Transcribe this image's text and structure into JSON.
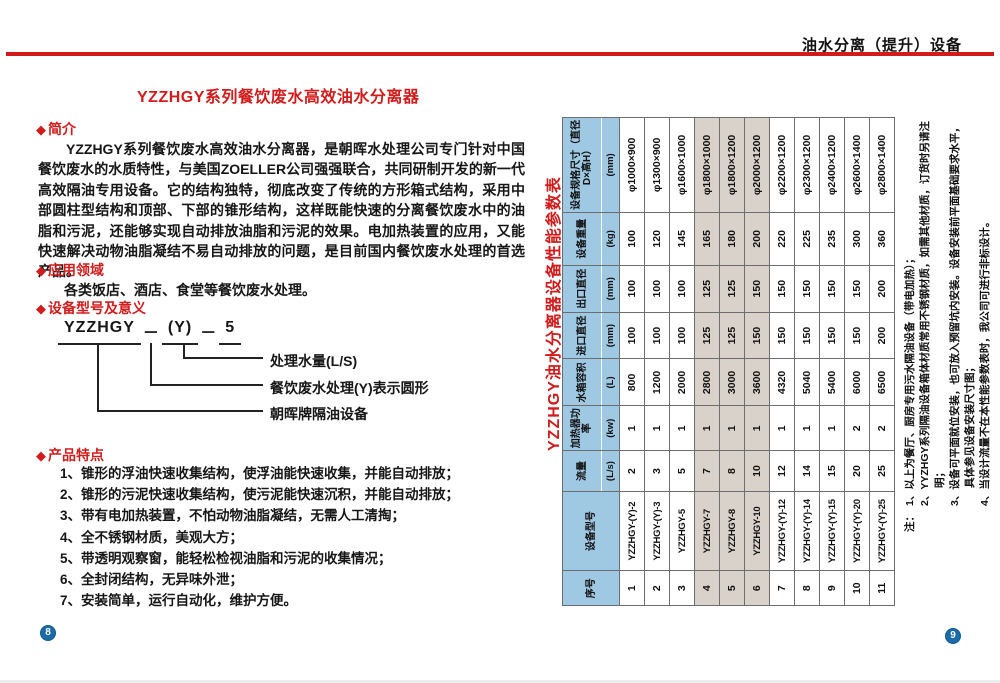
{
  "header": {
    "section_label": "油水分离（提升）设备"
  },
  "left_page": {
    "bullet": "◆",
    "title": "YZZHGY系列餐饮废水高效油水分离器",
    "intro": {
      "heading": "简介",
      "body": "YZZHGY系列餐饮废水高效油水分离器，是朝晖水处理公司专门针对中国餐饮废水的水质特性，与美国ZOELLER公司强强联合，共同研制开发的新一代高效隔油专用设备。它的结构独特，彻底改变了传统的方形箱式结构，采用中部圆柱型结构和顶部、下部的锥形结构，这样既能快速的分离餐饮废水中的油脂和污泥，还能够实现自动排放油脂和污泥的效果。电加热装置的应用，又能快速解决动物油脂凝结不易自动排放的问题，是目前国内餐饮废水处理的首选产品。"
    },
    "application": {
      "heading": "应用领域",
      "body": "各类饭店、酒店、食堂等餐饮废水处理。"
    },
    "model": {
      "heading": "设备型号及意义",
      "code": {
        "brand": "YZZHGY",
        "sep1": "－",
        "shape": "(Y)",
        "sep2": "－",
        "flow": "5"
      },
      "labels": [
        "处理水量(L/S)",
        "餐饮废水处理(Y)表示圆形",
        "朝晖牌隔油设备"
      ]
    },
    "features": {
      "heading": "产品特点",
      "items": [
        "1、锥形的浮油快速收集结构，使浮油能快速收集，并能自动排放；",
        "2、锥形的污泥快速收集结构，使污泥能快速沉积，并能自动排放；",
        "3、带有电加热装置，不怕动物油脂凝结，无需人工清掏；",
        "4、全不锈钢材质，美观大方；",
        "5、带透明观察窗，能轻松检视油脂和污泥的收集情况；",
        "6、全封闭结构，无异味外泄；",
        "7、安装简单，运行自动化，维护方便。"
      ]
    },
    "page_number": "8"
  },
  "right_page": {
    "table_title": "YZZHGY油水分离器设备性能参数表",
    "table": {
      "columns": [
        {
          "name": "序号",
          "unit": ""
        },
        {
          "name": "设备型号",
          "unit": ""
        },
        {
          "name": "流量",
          "unit": "(L/s)"
        },
        {
          "name": "加热器功率",
          "unit": "(kw)"
        },
        {
          "name": "水箱容积",
          "unit": "(L)"
        },
        {
          "name": "进口直径",
          "unit": "(mm)"
        },
        {
          "name": "出口直径",
          "unit": "(mm)"
        },
        {
          "name": "设备重量",
          "unit": "(kg)"
        },
        {
          "name": "设备规格尺寸（直径D×高H）",
          "unit": "(mm)"
        }
      ],
      "rows": [
        [
          "1",
          "YZZHGY-(Y)-2",
          "2",
          "1",
          "800",
          "100",
          "100",
          "100",
          "φ1000×900"
        ],
        [
          "2",
          "YZZHGY-(Y)-3",
          "3",
          "1",
          "1200",
          "100",
          "100",
          "120",
          "φ1300×900"
        ],
        [
          "3",
          "YZZHGY-5",
          "5",
          "1",
          "2000",
          "100",
          "100",
          "145",
          "φ1600×1000"
        ],
        [
          "4",
          "YZZHGY-7",
          "7",
          "1",
          "2800",
          "125",
          "125",
          "165",
          "φ1800×1000"
        ],
        [
          "5",
          "YZZHGY-8",
          "8",
          "1",
          "3000",
          "125",
          "125",
          "180",
          "φ1800×1200"
        ],
        [
          "6",
          "YZZHGY-10",
          "10",
          "1",
          "3600",
          "150",
          "150",
          "200",
          "φ2000×1200"
        ],
        [
          "7",
          "YZZHGY-(Y)-12",
          "12",
          "1",
          "4320",
          "150",
          "150",
          "220",
          "φ2200×1200"
        ],
        [
          "8",
          "YZZHGY-(Y)-14",
          "14",
          "1",
          "5040",
          "150",
          "150",
          "225",
          "φ2300×1200"
        ],
        [
          "9",
          "YZZHGY-(Y)-15",
          "15",
          "1",
          "5400",
          "150",
          "150",
          "235",
          "φ2400×1200"
        ],
        [
          "10",
          "YZZHGY-(Y)-20",
          "20",
          "2",
          "6000",
          "150",
          "150",
          "300",
          "φ2600×1400"
        ],
        [
          "11",
          "YZZHGY-(Y)-25",
          "25",
          "2",
          "6500",
          "200",
          "200",
          "360",
          "φ2800×1400"
        ]
      ],
      "highlighted_serials": [
        "4",
        "5",
        "6"
      ]
    },
    "notes": {
      "prefix": "注：",
      "items": [
        "1、以上为餐厅、厨房专用污水隔油设备（带电加热）；",
        "2、YYZHGY系列隔油设备箱体材质常用不锈钢材质，如需其他材质，订货时另请注明；",
        "3、设备可平面就位安装，也可放入预留坑内安装。设备安装前平面基础要求水平，具体参见设备安装尺寸图；",
        "4、当设计流量不在本性能参数表时，我公司可进行非标设计。"
      ]
    },
    "page_number": "9"
  },
  "colors": {
    "accent_red": "#d21c1c",
    "header_blue": "#9fc8e2",
    "row_shade": "#d8d2ca",
    "badge_blue": "#1b6ba8"
  }
}
